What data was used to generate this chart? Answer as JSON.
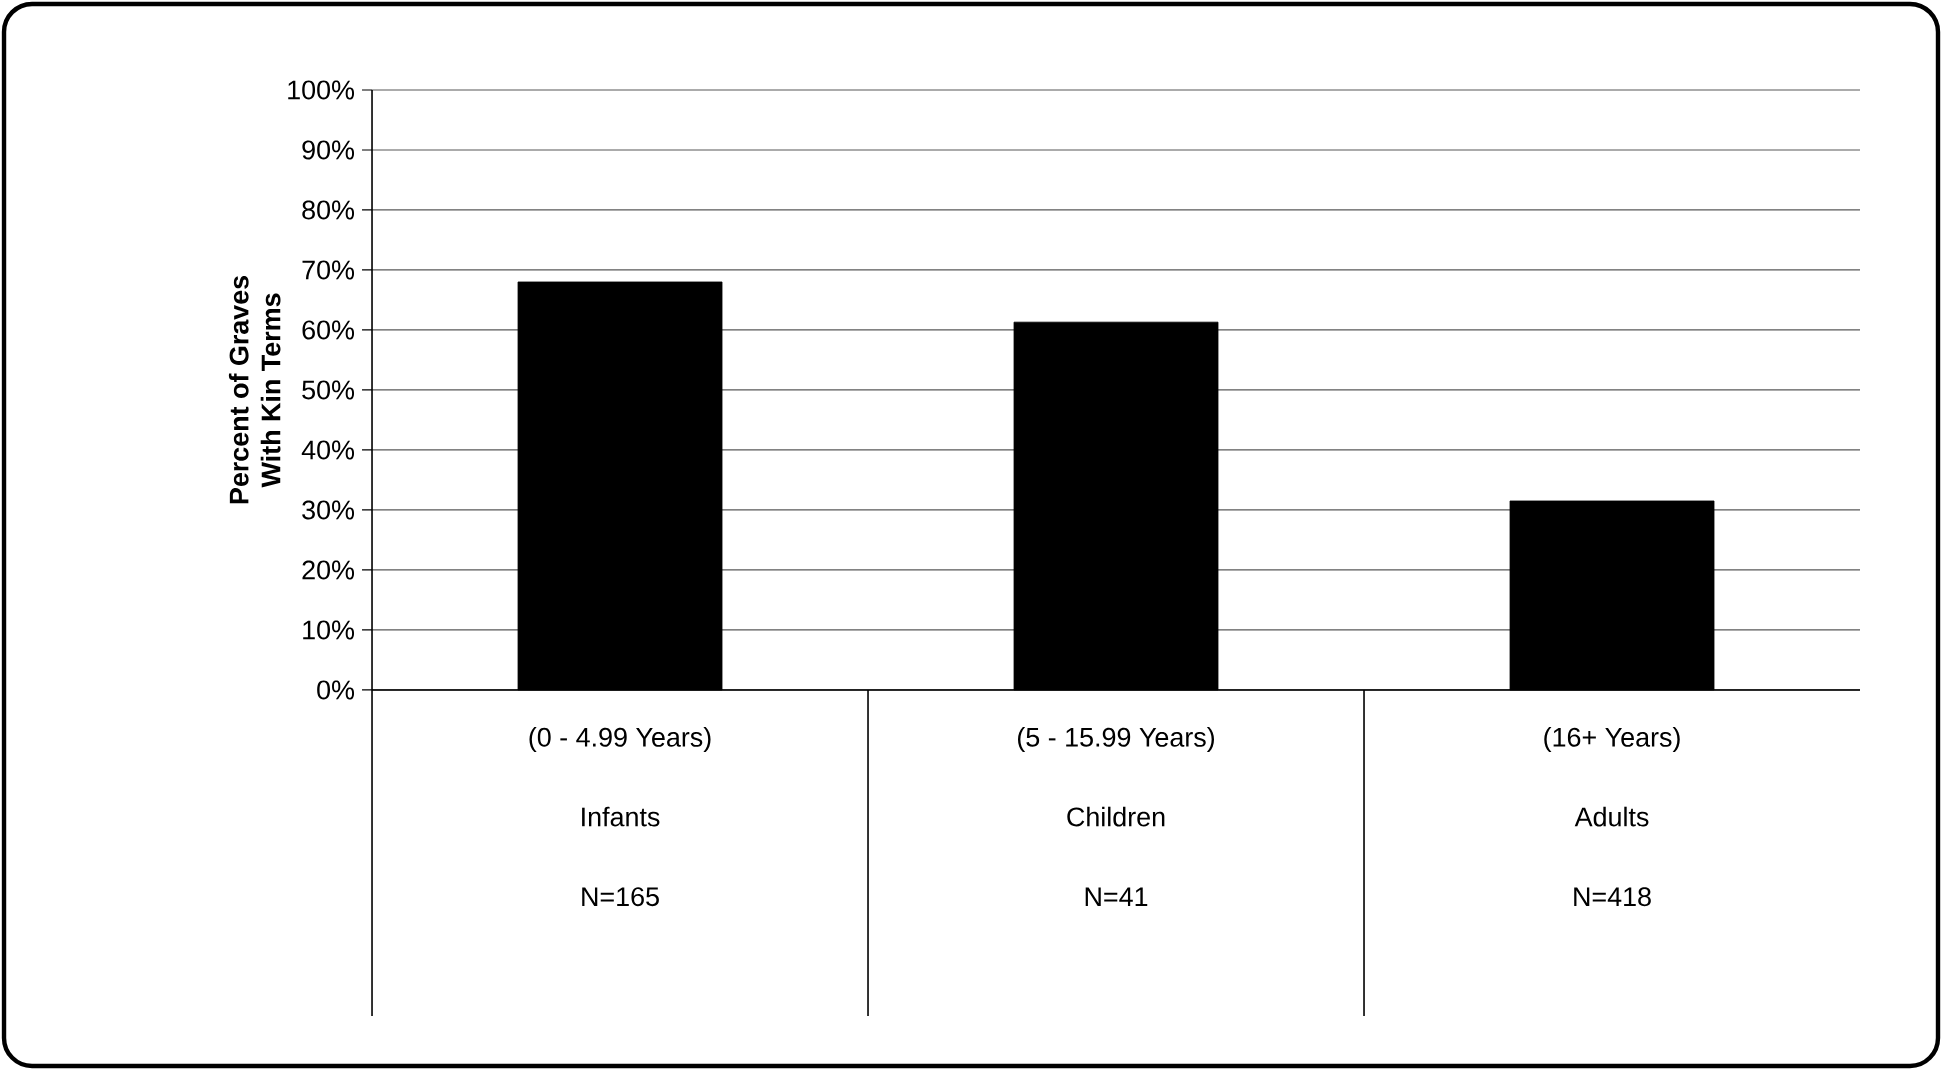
{
  "chart_data": {
    "type": "bar",
    "ylabel": "Percent of Graves\nWith Kin Terms",
    "categories": [
      "(0 - 4.99 Years)\nInfants\nN=165",
      "(5 - 15.99 Years)\nChildren\nN=41",
      "(16+ Years)\nAdults\nN=418"
    ],
    "values": [
      68,
      61.3,
      31.5
    ],
    "color": "#000000",
    "ylim": [
      0,
      100
    ],
    "yticks": [
      {
        "value": 0,
        "label": "0%"
      },
      {
        "value": 10,
        "label": "10%"
      },
      {
        "value": 20,
        "label": "20%"
      },
      {
        "value": 30,
        "label": "30%"
      },
      {
        "value": 40,
        "label": "40%"
      },
      {
        "value": 50,
        "label": "50%"
      },
      {
        "value": 60,
        "label": "60%"
      },
      {
        "value": 70,
        "label": "70%"
      },
      {
        "value": 80,
        "label": "80%"
      },
      {
        "value": 90,
        "label": "90%"
      },
      {
        "value": 100,
        "label": "100%"
      }
    ],
    "grid": "y"
  }
}
